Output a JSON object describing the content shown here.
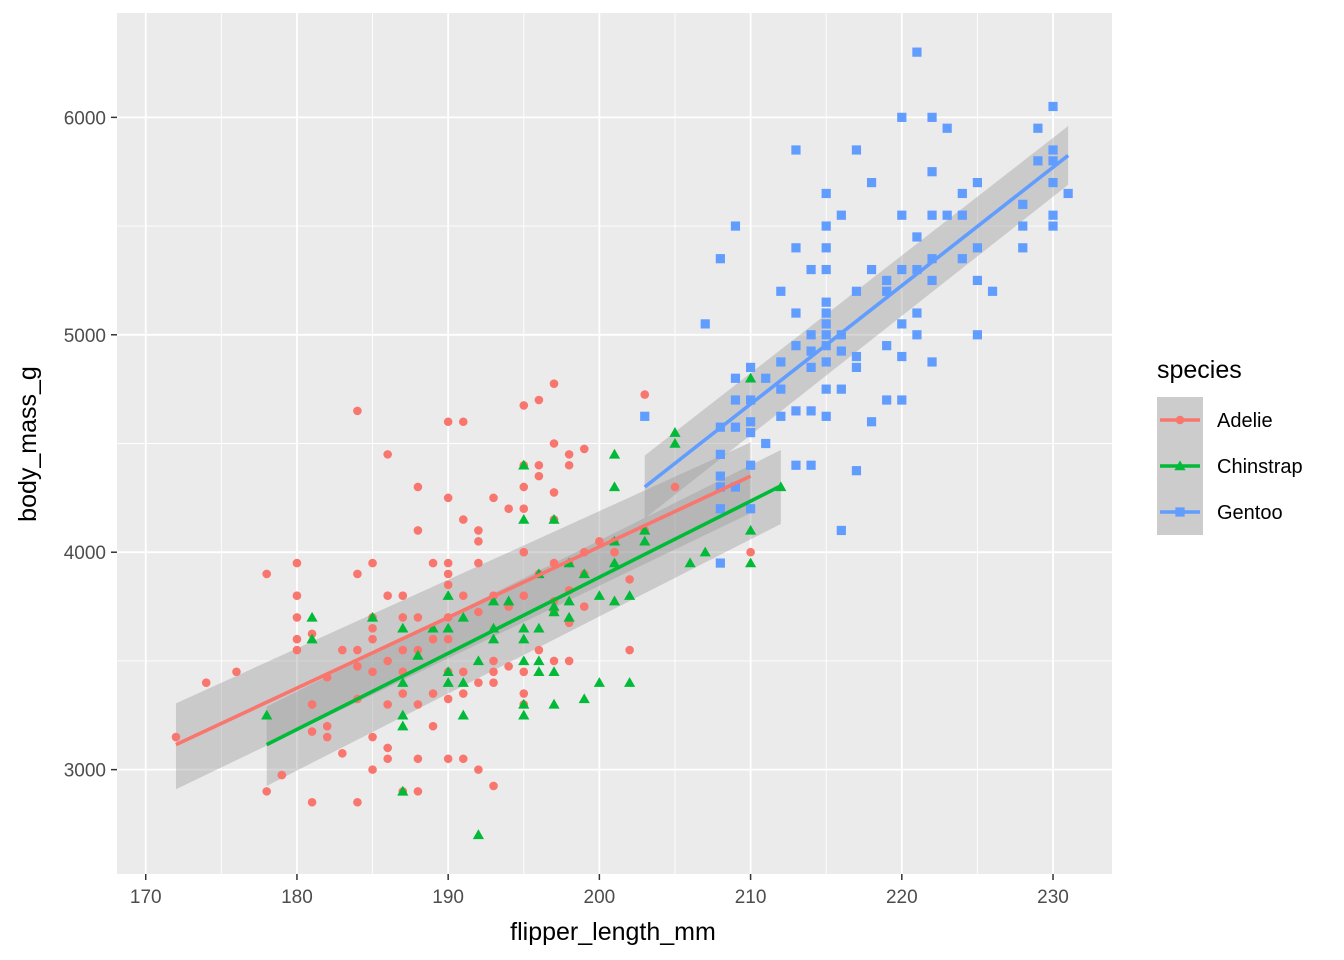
{
  "chart_data": {
    "type": "scatter",
    "xlabel": "flipper_length_mm",
    "ylabel": "body_mass_g",
    "xlim": [
      168.1,
      233.9
    ],
    "ylim": [
      2520,
      6480
    ],
    "xticks": [
      170,
      180,
      190,
      200,
      210,
      220,
      230
    ],
    "yticks": [
      3000,
      4000,
      5000,
      6000
    ],
    "grid": true,
    "legend_position": "right",
    "legend_title": "species",
    "smoother": "linear regression with confidence band",
    "series": [
      {
        "name": "Adelie",
        "color": "#F8766D",
        "shape": "circle",
        "fit": {
          "x": [
            172,
            210
          ],
          "y": [
            3115,
            4350
          ],
          "se_lo": [
            2910,
            4180
          ],
          "se_hi": [
            3305,
            4505
          ]
        },
        "points": [
          [
            172,
            3150
          ],
          [
            174,
            3400
          ],
          [
            176,
            3450
          ],
          [
            178,
            3900
          ],
          [
            178,
            2900
          ],
          [
            179,
            2975
          ],
          [
            180,
            3950
          ],
          [
            180,
            3800
          ],
          [
            180,
            3700
          ],
          [
            180,
            3600
          ],
          [
            180,
            3550
          ],
          [
            181,
            3625
          ],
          [
            181,
            3300
          ],
          [
            181,
            3175
          ],
          [
            181,
            2850
          ],
          [
            182,
            3425
          ],
          [
            182,
            3200
          ],
          [
            182,
            3150
          ],
          [
            183,
            3550
          ],
          [
            183,
            3075
          ],
          [
            184,
            4650
          ],
          [
            184,
            3900
          ],
          [
            184,
            3550
          ],
          [
            184,
            3475
          ],
          [
            184,
            3325
          ],
          [
            184,
            2850
          ],
          [
            185,
            3950
          ],
          [
            185,
            3700
          ],
          [
            185,
            3650
          ],
          [
            185,
            3600
          ],
          [
            185,
            3450
          ],
          [
            185,
            3150
          ],
          [
            185,
            3000
          ],
          [
            186,
            4450
          ],
          [
            186,
            3800
          ],
          [
            186,
            3500
          ],
          [
            186,
            3300
          ],
          [
            186,
            3100
          ],
          [
            186,
            3050
          ],
          [
            187,
            3800
          ],
          [
            187,
            3700
          ],
          [
            187,
            3550
          ],
          [
            187,
            3450
          ],
          [
            187,
            3350
          ],
          [
            187,
            2900
          ],
          [
            188,
            4300
          ],
          [
            188,
            4100
          ],
          [
            188,
            3700
          ],
          [
            188,
            3550
          ],
          [
            188,
            3300
          ],
          [
            188,
            3050
          ],
          [
            188,
            2900
          ],
          [
            189,
            3950
          ],
          [
            189,
            3600
          ],
          [
            189,
            3350
          ],
          [
            189,
            3200
          ],
          [
            190,
            4600
          ],
          [
            190,
            4250
          ],
          [
            190,
            3950
          ],
          [
            190,
            3900
          ],
          [
            190,
            3850
          ],
          [
            190,
            3700
          ],
          [
            190,
            3600
          ],
          [
            190,
            3450
          ],
          [
            190,
            3325
          ],
          [
            190,
            3050
          ],
          [
            191,
            4600
          ],
          [
            191,
            4150
          ],
          [
            191,
            3800
          ],
          [
            191,
            3450
          ],
          [
            191,
            3350
          ],
          [
            191,
            3050
          ],
          [
            192,
            4100
          ],
          [
            192,
            4050
          ],
          [
            192,
            3950
          ],
          [
            192,
            3725
          ],
          [
            192,
            3400
          ],
          [
            192,
            3000
          ],
          [
            193,
            4250
          ],
          [
            193,
            3800
          ],
          [
            193,
            3500
          ],
          [
            193,
            3450
          ],
          [
            193,
            3400
          ],
          [
            193,
            2925
          ],
          [
            194,
            4200
          ],
          [
            194,
            3750
          ],
          [
            194,
            3475
          ],
          [
            195,
            4675
          ],
          [
            195,
            4400
          ],
          [
            195,
            4300
          ],
          [
            195,
            4200
          ],
          [
            195,
            4000
          ],
          [
            195,
            3800
          ],
          [
            195,
            3450
          ],
          [
            195,
            3350
          ],
          [
            195,
            3300
          ],
          [
            196,
            4700
          ],
          [
            196,
            4400
          ],
          [
            196,
            4350
          ],
          [
            196,
            3900
          ],
          [
            196,
            3550
          ],
          [
            197,
            4775
          ],
          [
            197,
            4500
          ],
          [
            197,
            4275
          ],
          [
            197,
            4150
          ],
          [
            197,
            3950
          ],
          [
            197,
            3775
          ],
          [
            197,
            3725
          ],
          [
            197,
            3500
          ],
          [
            198,
            4450
          ],
          [
            198,
            4400
          ],
          [
            198,
            3950
          ],
          [
            198,
            3825
          ],
          [
            198,
            3675
          ],
          [
            198,
            3500
          ],
          [
            199,
            4475
          ],
          [
            199,
            4000
          ],
          [
            199,
            3900
          ],
          [
            199,
            3750
          ],
          [
            200,
            4050
          ],
          [
            201,
            4050
          ],
          [
            201,
            4000
          ],
          [
            202,
            3875
          ],
          [
            202,
            3550
          ],
          [
            203,
            4725
          ],
          [
            203,
            4100
          ],
          [
            205,
            4300
          ],
          [
            210,
            4000
          ]
        ]
      },
      {
        "name": "Chinstrap",
        "color": "#00BA38",
        "shape": "triangle",
        "fit": {
          "x": [
            178,
            212
          ],
          "y": [
            3115,
            4305
          ],
          "se_lo": [
            2925,
            4130
          ],
          "se_hi": [
            3290,
            4470
          ]
        },
        "points": [
          [
            178,
            3250
          ],
          [
            181,
            3700
          ],
          [
            181,
            3600
          ],
          [
            185,
            3700
          ],
          [
            187,
            3650
          ],
          [
            187,
            3400
          ],
          [
            187,
            3250
          ],
          [
            187,
            3200
          ],
          [
            187,
            2900
          ],
          [
            188,
            3525
          ],
          [
            189,
            3650
          ],
          [
            190,
            3450
          ],
          [
            190,
            3400
          ],
          [
            190,
            3800
          ],
          [
            190,
            3650
          ],
          [
            191,
            3700
          ],
          [
            191,
            3400
          ],
          [
            191,
            3250
          ],
          [
            192,
            3500
          ],
          [
            192,
            2700
          ],
          [
            193,
            3775
          ],
          [
            193,
            3650
          ],
          [
            193,
            3600
          ],
          [
            194,
            3775
          ],
          [
            195,
            4400
          ],
          [
            195,
            4150
          ],
          [
            195,
            3650
          ],
          [
            195,
            3600
          ],
          [
            195,
            3500
          ],
          [
            195,
            3300
          ],
          [
            195,
            3250
          ],
          [
            196,
            3900
          ],
          [
            196,
            3650
          ],
          [
            196,
            3500
          ],
          [
            196,
            3450
          ],
          [
            197,
            4150
          ],
          [
            197,
            3750
          ],
          [
            197,
            3725
          ],
          [
            197,
            3450
          ],
          [
            197,
            3300
          ],
          [
            198,
            3950
          ],
          [
            198,
            3775
          ],
          [
            198,
            3700
          ],
          [
            199,
            3900
          ],
          [
            199,
            3325
          ],
          [
            200,
            3800
          ],
          [
            200,
            3400
          ],
          [
            201,
            4450
          ],
          [
            201,
            4300
          ],
          [
            201,
            4050
          ],
          [
            201,
            3950
          ],
          [
            201,
            3775
          ],
          [
            202,
            3800
          ],
          [
            202,
            3400
          ],
          [
            203,
            4100
          ],
          [
            203,
            4050
          ],
          [
            205,
            4550
          ],
          [
            205,
            4500
          ],
          [
            206,
            3950
          ],
          [
            207,
            4000
          ],
          [
            210,
            4800
          ],
          [
            210,
            4100
          ],
          [
            210,
            3950
          ],
          [
            212,
            4300
          ]
        ]
      },
      {
        "name": "Gentoo",
        "color": "#619CFF",
        "shape": "square",
        "fit": {
          "x": [
            203,
            231
          ],
          "y": [
            4300,
            5825
          ],
          "se_lo": [
            4155,
            5690
          ],
          "se_hi": [
            4445,
            5960
          ]
        },
        "points": [
          [
            203,
            4625
          ],
          [
            207,
            5050
          ],
          [
            208,
            5350
          ],
          [
            208,
            4575
          ],
          [
            208,
            4450
          ],
          [
            208,
            4350
          ],
          [
            208,
            4300
          ],
          [
            208,
            4200
          ],
          [
            208,
            3950
          ],
          [
            209,
            5500
          ],
          [
            209,
            4800
          ],
          [
            209,
            4700
          ],
          [
            209,
            4575
          ],
          [
            209,
            4300
          ],
          [
            210,
            4850
          ],
          [
            210,
            4700
          ],
          [
            210,
            4550
          ],
          [
            210,
            4400
          ],
          [
            210,
            4200
          ],
          [
            210,
            4600
          ],
          [
            211,
            4800
          ],
          [
            211,
            4500
          ],
          [
            212,
            5200
          ],
          [
            212,
            4875
          ],
          [
            212,
            4750
          ],
          [
            212,
            4625
          ],
          [
            213,
            5850
          ],
          [
            213,
            5400
          ],
          [
            213,
            5100
          ],
          [
            213,
            4950
          ],
          [
            213,
            4650
          ],
          [
            213,
            4400
          ],
          [
            214,
            5300
          ],
          [
            214,
            5000
          ],
          [
            214,
            4925
          ],
          [
            214,
            4850
          ],
          [
            214,
            4650
          ],
          [
            214,
            4400
          ],
          [
            215,
            5650
          ],
          [
            215,
            5500
          ],
          [
            215,
            5400
          ],
          [
            215,
            5300
          ],
          [
            215,
            5150
          ],
          [
            215,
            5100
          ],
          [
            215,
            5050
          ],
          [
            215,
            5000
          ],
          [
            215,
            4950
          ],
          [
            215,
            4875
          ],
          [
            215,
            4750
          ],
          [
            215,
            4625
          ],
          [
            216,
            5550
          ],
          [
            216,
            5000
          ],
          [
            216,
            4925
          ],
          [
            216,
            4750
          ],
          [
            216,
            4100
          ],
          [
            217,
            5850
          ],
          [
            217,
            5200
          ],
          [
            217,
            4900
          ],
          [
            217,
            4850
          ],
          [
            217,
            4375
          ],
          [
            218,
            5700
          ],
          [
            218,
            5300
          ],
          [
            218,
            4600
          ],
          [
            219,
            5250
          ],
          [
            219,
            5200
          ],
          [
            219,
            4950
          ],
          [
            219,
            4700
          ],
          [
            220,
            6000
          ],
          [
            220,
            5550
          ],
          [
            220,
            5300
          ],
          [
            220,
            5050
          ],
          [
            220,
            4900
          ],
          [
            220,
            4700
          ],
          [
            221,
            6300
          ],
          [
            221,
            5450
          ],
          [
            221,
            5300
          ],
          [
            221,
            5100
          ],
          [
            221,
            5000
          ],
          [
            222,
            6000
          ],
          [
            222,
            5750
          ],
          [
            222,
            5550
          ],
          [
            222,
            5350
          ],
          [
            222,
            5250
          ],
          [
            222,
            4875
          ],
          [
            223,
            5950
          ],
          [
            223,
            5550
          ],
          [
            224,
            5650
          ],
          [
            224,
            5550
          ],
          [
            224,
            5350
          ],
          [
            225,
            5700
          ],
          [
            225,
            5400
          ],
          [
            225,
            5250
          ],
          [
            225,
            5000
          ],
          [
            226,
            5200
          ],
          [
            228,
            5600
          ],
          [
            228,
            5500
          ],
          [
            228,
            5400
          ],
          [
            229,
            5950
          ],
          [
            229,
            5800
          ],
          [
            230,
            6050
          ],
          [
            230,
            5850
          ],
          [
            230,
            5800
          ],
          [
            230,
            5700
          ],
          [
            230,
            5550
          ],
          [
            230,
            5500
          ],
          [
            231,
            5650
          ]
        ]
      }
    ]
  }
}
